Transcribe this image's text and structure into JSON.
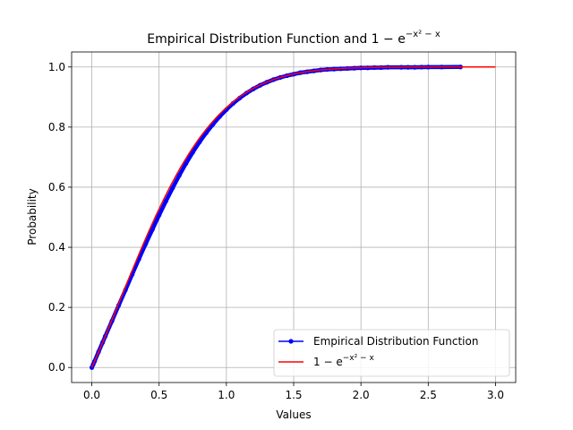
{
  "chart_data": {
    "type": "line",
    "title_main": "Empirical Distribution Function and 1 − e",
    "title_exp": "−x² − x",
    "xlabel": "Values",
    "ylabel": "Probability",
    "xlim": [
      -0.15,
      3.15
    ],
    "ylim": [
      -0.05,
      1.05
    ],
    "xticks": [
      0.0,
      0.5,
      1.0,
      1.5,
      2.0,
      2.5,
      3.0
    ],
    "xtick_labels": [
      "0.0",
      "0.5",
      "1.0",
      "1.5",
      "2.0",
      "2.5",
      "3.0"
    ],
    "yticks": [
      0.0,
      0.2,
      0.4,
      0.6,
      0.8,
      1.0
    ],
    "ytick_labels": [
      "0.0",
      "0.2",
      "0.4",
      "0.6",
      "0.8",
      "1.0"
    ],
    "grid": true,
    "legend_position": "bottom-right",
    "series": [
      {
        "name": "Empirical Distribution Function",
        "kind": "ecdf",
        "color": "#0000ff",
        "marker": "circle",
        "x": [
          0.0,
          0.01,
          0.02,
          0.05,
          0.08,
          0.1,
          0.15,
          0.2,
          0.25,
          0.3,
          0.35,
          0.4,
          0.45,
          0.5,
          0.55,
          0.6,
          0.65,
          0.7,
          0.75,
          0.8,
          0.85,
          0.9,
          0.95,
          1.0,
          1.05,
          1.1,
          1.15,
          1.2,
          1.25,
          1.3,
          1.35,
          1.4,
          1.45,
          1.5,
          1.55,
          1.6,
          1.65,
          1.7,
          1.75,
          1.8,
          1.85,
          1.9,
          1.95,
          2.0,
          2.05,
          2.1,
          2.15,
          2.2,
          2.3,
          2.35,
          2.4,
          2.45,
          2.5,
          2.6,
          2.74
        ],
        "y": [
          0.0,
          0.01,
          0.02,
          0.052,
          0.083,
          0.104,
          0.155,
          0.207,
          0.258,
          0.31,
          0.361,
          0.411,
          0.459,
          0.507,
          0.553,
          0.597,
          0.639,
          0.679,
          0.716,
          0.75,
          0.781,
          0.809,
          0.835,
          0.858,
          0.879,
          0.897,
          0.913,
          0.927,
          0.939,
          0.949,
          0.958,
          0.965,
          0.971,
          0.976,
          0.981,
          0.984,
          0.987,
          0.99,
          0.992,
          0.993,
          0.994,
          0.995,
          0.996,
          0.997,
          0.997,
          0.998,
          0.998,
          0.999,
          0.999,
          0.999,
          0.999,
          0.9995,
          0.9996,
          0.9998,
          1.0
        ]
      },
      {
        "name": "1 − e",
        "name_exp": "−x² − x",
        "kind": "function",
        "color": "#ff0000",
        "marker": "none",
        "x_range": [
          0.0,
          3.0
        ]
      }
    ]
  }
}
